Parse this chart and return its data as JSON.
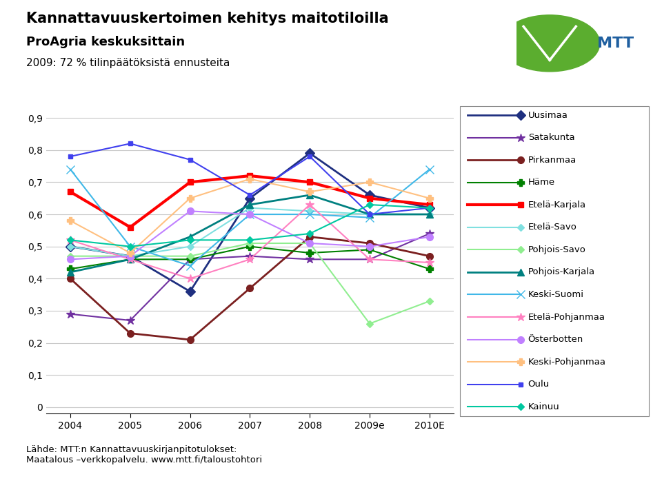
{
  "title_line1": "Kannattavuuskertoimen kehitys maitotiloilla",
  "title_line2": "ProAgria keskuksittain",
  "title_line3": "2009: 72 % tilinpäätöksistä ennusteita",
  "x_labels": [
    "2004",
    "2005",
    "2006",
    "2007",
    "2008",
    "2009e",
    "2010E"
  ],
  "yticks": [
    0,
    0.1,
    0.2,
    0.3,
    0.4,
    0.5,
    0.6,
    0.7,
    0.8,
    0.9
  ],
  "footer": "Lähde: MTT:n Kannattavuuskirjanpitotulokset:\nMaatalous –verkkopalvelu. www.mtt.fi/taloustohtori",
  "series": [
    {
      "name": "Uusimaa",
      "color": "#1F3080",
      "marker": "D",
      "linewidth": 2,
      "markersize": 7,
      "values": [
        0.5,
        0.47,
        0.36,
        0.65,
        0.79,
        0.66,
        0.62
      ]
    },
    {
      "name": "Satakunta",
      "color": "#7030A0",
      "marker": "*",
      "linewidth": 1.5,
      "markersize": 9,
      "values": [
        0.29,
        0.27,
        0.46,
        0.47,
        0.46,
        0.46,
        0.54
      ]
    },
    {
      "name": "Pirkanmaa",
      "color": "#7B2020",
      "marker": "o",
      "linewidth": 2,
      "markersize": 7,
      "values": [
        0.4,
        0.23,
        0.21,
        0.37,
        0.53,
        0.51,
        0.47
      ]
    },
    {
      "name": "Häme",
      "color": "#008000",
      "marker": "P",
      "linewidth": 1.5,
      "markersize": 7,
      "values": [
        0.43,
        0.46,
        0.46,
        0.5,
        0.48,
        0.49,
        0.43
      ]
    },
    {
      "name": "Etelä-Karjala",
      "color": "#FF0000",
      "marker": "s",
      "linewidth": 3,
      "markersize": 6,
      "values": [
        0.67,
        0.56,
        0.7,
        0.72,
        0.7,
        0.65,
        0.63
      ]
    },
    {
      "name": "Etelä-Savo",
      "color": "#80E0E0",
      "marker": "D",
      "linewidth": 1.5,
      "markersize": 5,
      "values": [
        0.5,
        0.47,
        0.5,
        0.62,
        0.61,
        0.6,
        0.6
      ]
    },
    {
      "name": "Pohjois-Savo",
      "color": "#90EE90",
      "marker": "D",
      "linewidth": 1.5,
      "markersize": 5,
      "values": [
        0.47,
        0.47,
        0.47,
        0.51,
        0.51,
        0.26,
        0.33
      ]
    },
    {
      "name": "Pohjois-Karjala",
      "color": "#008080",
      "marker": "^",
      "linewidth": 2,
      "markersize": 7,
      "values": [
        0.42,
        0.46,
        0.53,
        0.63,
        0.66,
        0.6,
        0.6
      ]
    },
    {
      "name": "Keski-Suomi",
      "color": "#40B8E8",
      "marker": "x",
      "linewidth": 1.5,
      "markersize": 8,
      "values": [
        0.74,
        0.5,
        0.44,
        0.6,
        0.6,
        0.59,
        0.74
      ]
    },
    {
      "name": "Etelä-Pohjanmaa",
      "color": "#FF80C0",
      "marker": "*",
      "linewidth": 1.5,
      "markersize": 9,
      "values": [
        0.52,
        0.46,
        0.4,
        0.46,
        0.63,
        0.46,
        0.45
      ]
    },
    {
      "name": "Österbotten",
      "color": "#C080FF",
      "marker": "o",
      "linewidth": 1.5,
      "markersize": 7,
      "values": [
        0.46,
        0.47,
        0.61,
        0.6,
        0.51,
        0.5,
        0.53
      ]
    },
    {
      "name": "Keski-Pohjanmaa",
      "color": "#FFC080",
      "marker": "P",
      "linewidth": 1.5,
      "markersize": 7,
      "values": [
        0.58,
        0.48,
        0.65,
        0.71,
        0.67,
        0.7,
        0.65
      ]
    },
    {
      "name": "Oulu",
      "color": "#4040EE",
      "marker": "s",
      "linewidth": 1.5,
      "markersize": 5,
      "values": [
        0.78,
        0.82,
        0.77,
        0.66,
        0.78,
        0.6,
        0.62
      ]
    },
    {
      "name": "Kainuu",
      "color": "#00C8A0",
      "marker": "D",
      "linewidth": 1.5,
      "markersize": 5,
      "values": [
        0.52,
        0.5,
        0.52,
        0.52,
        0.54,
        0.63,
        0.62
      ]
    }
  ]
}
